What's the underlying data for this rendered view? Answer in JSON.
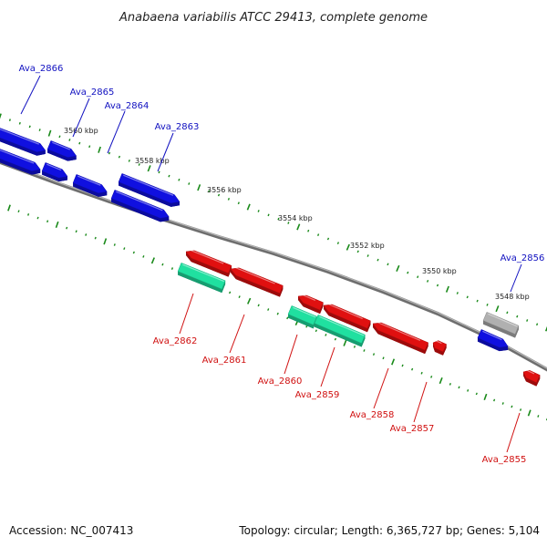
{
  "title": "Anabaena variabilis ATCC 29413, complete genome",
  "footer": {
    "accession": "Accession: NC_007413",
    "summary": "Topology: circular; Length: 6,365,727 bp; Genes: 5,104"
  },
  "colors": {
    "forward_gene": "#1010e0",
    "reverse_gene": "#e01010",
    "rna_gene": "#20e0a0",
    "pseudo_gene": "#b0b0b0",
    "backbone": "#808080",
    "tick": "#1a8a1a",
    "forward_label": "#1010c0",
    "reverse_label": "#d01010"
  },
  "scale": {
    "unit": "kbp",
    "labels": [
      "3560 kbp",
      "3558 kbp",
      "3556 kbp",
      "3554 kbp",
      "3552 kbp",
      "3550 kbp",
      "3548 kbp"
    ]
  },
  "genes": [
    {
      "id": "Ava_2866",
      "strand": "forward"
    },
    {
      "id": "Ava_2865",
      "strand": "forward"
    },
    {
      "id": "Ava_2864",
      "strand": "forward"
    },
    {
      "id": "Ava_2863",
      "strand": "forward"
    },
    {
      "id": "Ava_2862",
      "strand": "reverse"
    },
    {
      "id": "Ava_2861",
      "strand": "reverse"
    },
    {
      "id": "Ava_2860",
      "strand": "reverse"
    },
    {
      "id": "Ava_2859",
      "strand": "reverse"
    },
    {
      "id": "Ava_2858",
      "strand": "reverse"
    },
    {
      "id": "Ava_2857",
      "strand": "reverse"
    },
    {
      "id": "Ava_2856",
      "strand": "forward"
    },
    {
      "id": "Ava_2855",
      "strand": "reverse"
    }
  ]
}
